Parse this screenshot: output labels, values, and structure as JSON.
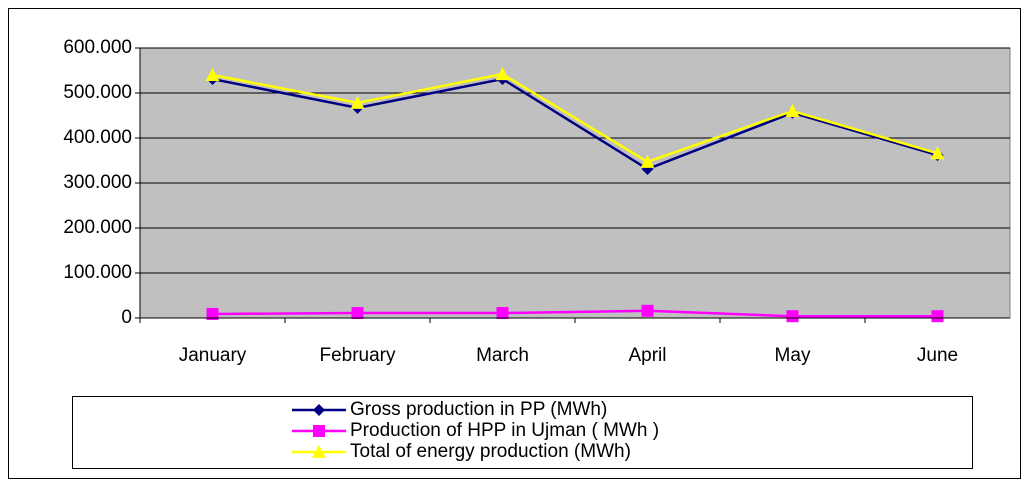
{
  "chart_data": {
    "type": "line",
    "categories": [
      "January",
      "February",
      "March",
      "April",
      "May",
      "June"
    ],
    "series": [
      {
        "name": "Gross  production in PP (MWh)",
        "color": "#000080",
        "marker": "diamond",
        "values": [
          531000,
          467000,
          531000,
          331000,
          456000,
          362000
        ]
      },
      {
        "name": "Production of HPP in Ujman ( MWh )",
        "color": "#ff00ff",
        "marker": "square",
        "values": [
          9000,
          11000,
          11000,
          16000,
          4000,
          4000
        ]
      },
      {
        "name": "Total of energy production (MWh)",
        "color": "#ffff00",
        "marker": "triangle",
        "values": [
          540000,
          478000,
          542000,
          347000,
          460000,
          366000
        ]
      }
    ],
    "ylim": [
      0,
      600000
    ],
    "yticks": [
      0,
      {
        "value": 100000,
        "label": "100.000"
      },
      {
        "value": 200000,
        "label": "200.000"
      },
      {
        "value": 300000,
        "label": "300.000"
      },
      {
        "value": 400000,
        "label": "400.000"
      },
      {
        "value": 500000,
        "label": "500.000"
      },
      {
        "value": 600000,
        "label": "600.000"
      }
    ],
    "grid": true,
    "legend": "bottom",
    "background": "#c0c0c0"
  }
}
